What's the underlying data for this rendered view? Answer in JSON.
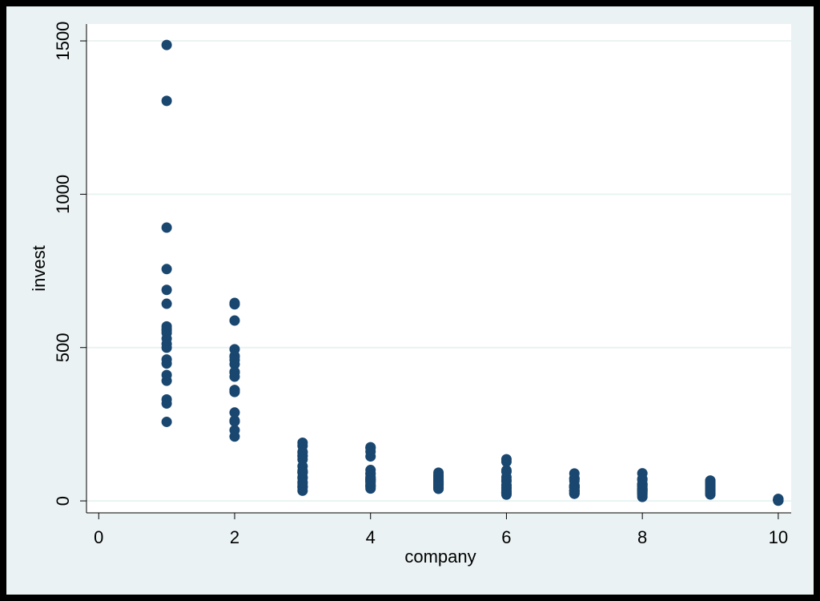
{
  "chart_data": {
    "type": "scatter",
    "x_label": "company",
    "y_label": "invest",
    "color": "#1a476f",
    "grid": true,
    "xlim": [
      -0.18,
      10.19
    ],
    "ylim": [
      -39,
      1555
    ],
    "xticks": [
      0,
      2,
      4,
      6,
      8,
      10
    ],
    "yticks": [
      0,
      500,
      1000,
      1500
    ],
    "x": [
      1,
      1,
      1,
      1,
      1,
      1,
      1,
      1,
      1,
      1,
      1,
      1,
      1,
      1,
      1,
      1,
      1,
      1,
      1,
      1,
      2,
      2,
      2,
      2,
      2,
      2,
      2,
      2,
      2,
      2,
      2,
      2,
      2,
      2,
      2,
      2,
      2,
      2,
      2,
      2,
      3,
      3,
      3,
      3,
      3,
      3,
      3,
      3,
      3,
      3,
      3,
      3,
      3,
      3,
      3,
      3,
      3,
      3,
      3,
      3,
      4,
      4,
      4,
      4,
      4,
      4,
      4,
      4,
      4,
      4,
      4,
      4,
      4,
      4,
      4,
      4,
      4,
      4,
      4,
      4,
      5,
      5,
      5,
      5,
      5,
      5,
      5,
      5,
      5,
      5,
      5,
      5,
      5,
      5,
      5,
      5,
      5,
      5,
      5,
      5,
      6,
      6,
      6,
      6,
      6,
      6,
      6,
      6,
      6,
      6,
      6,
      6,
      6,
      6,
      6,
      6,
      6,
      6,
      6,
      6,
      7,
      7,
      7,
      7,
      7,
      7,
      7,
      7,
      7,
      7,
      7,
      7,
      7,
      7,
      7,
      7,
      7,
      7,
      7,
      7,
      8,
      8,
      8,
      8,
      8,
      8,
      8,
      8,
      8,
      8,
      8,
      8,
      8,
      8,
      8,
      8,
      8,
      8,
      8,
      8,
      9,
      9,
      9,
      9,
      9,
      9,
      9,
      9,
      9,
      9,
      9,
      9,
      9,
      9,
      9,
      9,
      9,
      9,
      9,
      9,
      10,
      10,
      10,
      10,
      10,
      10,
      10,
      10,
      10,
      10,
      10,
      10,
      10,
      10,
      10,
      10,
      10,
      10,
      10,
      10
    ],
    "y": [
      317.6,
      391.8,
      410.6,
      257.7,
      330.8,
      461.2,
      512,
      448,
      499.6,
      547.5,
      561.2,
      688.1,
      568.9,
      529.2,
      555.1,
      642.9,
      755.9,
      891.2,
      1304.4,
      1486.7,
      209.9,
      355.3,
      469.9,
      262.3,
      230.4,
      361.6,
      472.8,
      445.6,
      361.6,
      288.2,
      258.7,
      420.3,
      420.5,
      494.5,
      405.1,
      418.8,
      588.2,
      645.5,
      641,
      459.3,
      33.1,
      45,
      77.2,
      44.6,
      48.1,
      74.4,
      113,
      91.9,
      61.3,
      56.8,
      93.6,
      159.9,
      147.2,
      146.3,
      98.3,
      93.5,
      135.2,
      157.3,
      179.5,
      189.6,
      40.29,
      72.76,
      66.26,
      51.6,
      52.41,
      69.41,
      68.35,
      46.8,
      47.4,
      59.57,
      88.78,
      74.12,
      62.68,
      89.36,
      78.98,
      100.66,
      160.62,
      145,
      174.93,
      172.49,
      39.68,
      50.73,
      74.24,
      53.51,
      42.65,
      46.48,
      61.4,
      39.67,
      62.24,
      52.32,
      63.21,
      59.37,
      58.02,
      70.34,
      67.42,
      55.74,
      80.3,
      85.4,
      91.9,
      81.43,
      20.36,
      25.98,
      25.94,
      27.53,
      24.6,
      28.54,
      43.41,
      42.81,
      27.84,
      32.6,
      39.03,
      50.17,
      51.85,
      64.03,
      68.16,
      77.34,
      95.3,
      99.49,
      127.52,
      135.72,
      24.43,
      23.21,
      32.78,
      32.54,
      26.65,
      33.71,
      43.5,
      34.46,
      44.28,
      70.8,
      44.12,
      48.98,
      48.51,
      50,
      50.59,
      42.53,
      64.77,
      72.68,
      73.86,
      89.51,
      12.93,
      25.9,
      35.05,
      22.89,
      18.84,
      28.57,
      48.51,
      43.34,
      37.02,
      37.81,
      39.27,
      53.46,
      55.56,
      49.56,
      32.04,
      32.24,
      54.38,
      71.78,
      90.08,
      68.6,
      26.63,
      23.39,
      30.65,
      20.89,
      28.78,
      26.93,
      32.08,
      32.21,
      35.69,
      62.47,
      52.32,
      56.95,
      54.32,
      40.53,
      32.54,
      43.48,
      56.49,
      65.98,
      66.11,
      49.34,
      2.54,
      2,
      2.19,
      1.99,
      2.03,
      1.81,
      2.14,
      1.86,
      0.93,
      1.18,
      1.36,
      2.24,
      3.81,
      5.66,
      4.21,
      3.42,
      4.67,
      6,
      6.53,
      5.12
    ]
  }
}
